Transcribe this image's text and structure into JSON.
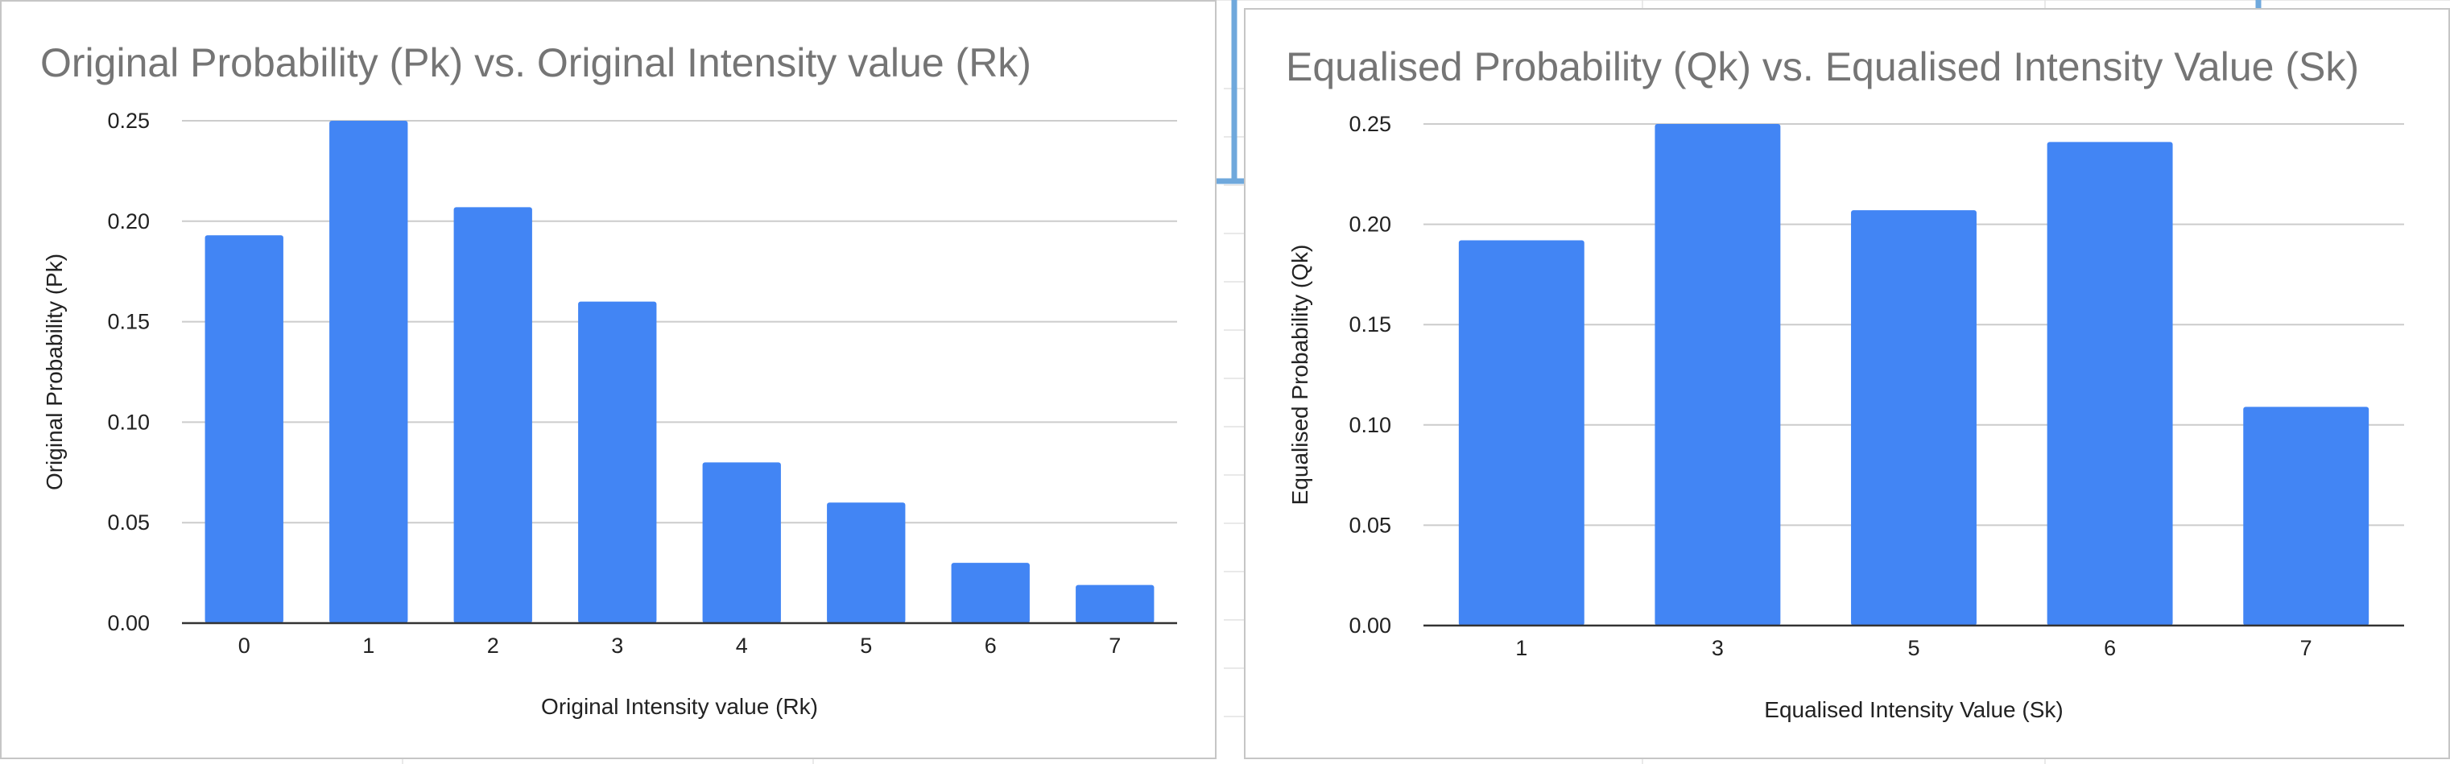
{
  "colors": {
    "bar": "#4285f4",
    "gridline": "#cccccc",
    "title": "#757575",
    "text": "#222222",
    "sheet_grid": "#e2e2e2",
    "selection_accent": "#6fa8dc"
  },
  "chart_data": [
    {
      "type": "bar",
      "title": "Original Probability (Pk) vs. Original Intensity value (Rk)",
      "xlabel": "Original Intensity value (Rk)",
      "ylabel": "Original Probability (Pk)",
      "categories": [
        "0",
        "1",
        "2",
        "3",
        "4",
        "5",
        "6",
        "7"
      ],
      "series": [
        {
          "values": [
            0.193,
            0.25,
            0.207,
            0.16,
            0.08,
            0.06,
            0.03,
            0.019
          ]
        }
      ],
      "ylim": [
        0,
        0.25
      ],
      "yticks": [
        "0.00",
        "0.05",
        "0.10",
        "0.15",
        "0.20",
        "0.25"
      ],
      "grid": true,
      "legend": "none"
    },
    {
      "type": "bar",
      "title": "Equalised Probability (Qk) vs. Equalised Intensity Value (Sk)",
      "xlabel": "Equalised Intensity Value (Sk)",
      "ylabel": "Equalised Probability (Qk)",
      "categories": [
        "1",
        "3",
        "5",
        "6",
        "7"
      ],
      "series": [
        {
          "values": [
            0.192,
            0.25,
            0.207,
            0.241,
            0.109
          ]
        }
      ],
      "ylim": [
        0,
        0.25
      ],
      "yticks": [
        "0.00",
        "0.05",
        "0.10",
        "0.15",
        "0.20",
        "0.25"
      ],
      "grid": true,
      "legend": "none"
    }
  ]
}
